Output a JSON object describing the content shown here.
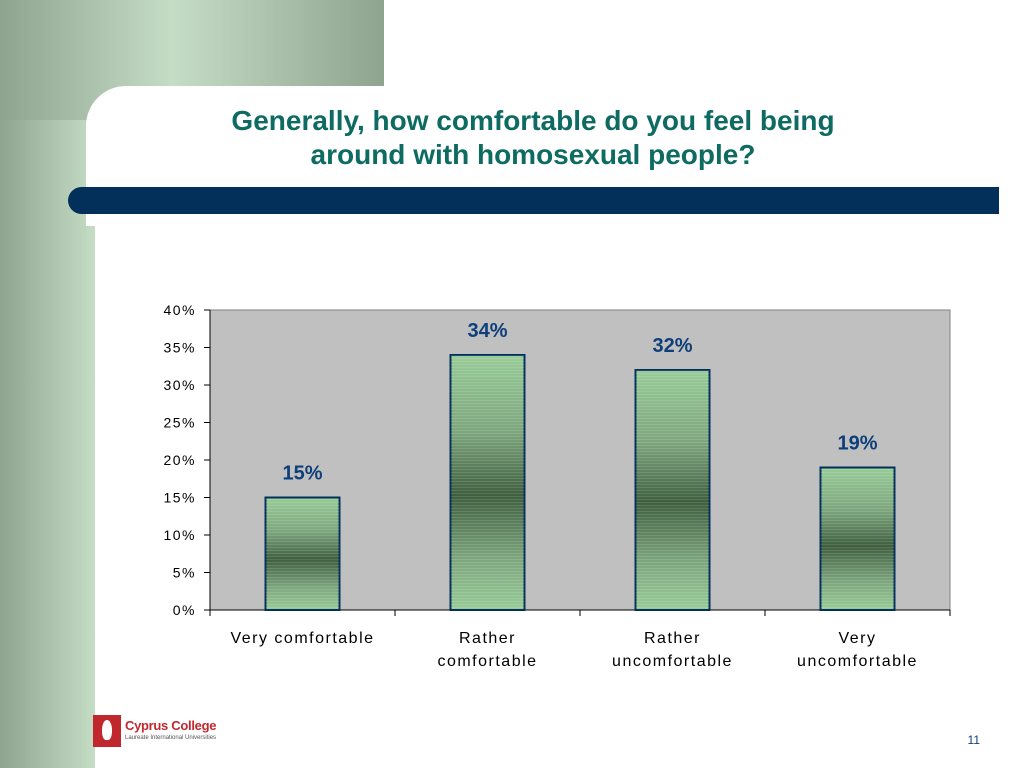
{
  "slide": {
    "title_line1": "Generally, how comfortable do you feel being",
    "title_line2": "around with homosexual people?",
    "page_number": "11"
  },
  "logo": {
    "name": "Cyprus College",
    "subtitle": "Laureate International Universities"
  },
  "colors": {
    "title": "#0e6b62",
    "rule": "#02305a",
    "plot_bg": "#c0c0c0",
    "bar_light": "#98cc98",
    "bar_dark": "#3f5f3f",
    "bar_border": "#02305a",
    "value_label": "#0e3f7a"
  },
  "chart_data": {
    "type": "bar",
    "title": "",
    "xlabel": "",
    "ylabel": "",
    "categories": [
      [
        "Very comfortable"
      ],
      [
        "Rather",
        "comfortable"
      ],
      [
        "Rather",
        "uncomfortable"
      ],
      [
        "Very",
        "uncomfortable"
      ]
    ],
    "values": [
      15,
      34,
      32,
      19
    ],
    "value_labels": [
      "15%",
      "34%",
      "32%",
      "19%"
    ],
    "ylim": [
      0,
      40
    ],
    "yticks": [
      0,
      5,
      10,
      15,
      20,
      25,
      30,
      35,
      40
    ],
    "ytick_labels": [
      "0%",
      "5%",
      "10%",
      "15%",
      "20%",
      "25%",
      "30%",
      "35%",
      "40%"
    ],
    "grid": false,
    "legend": "none"
  }
}
